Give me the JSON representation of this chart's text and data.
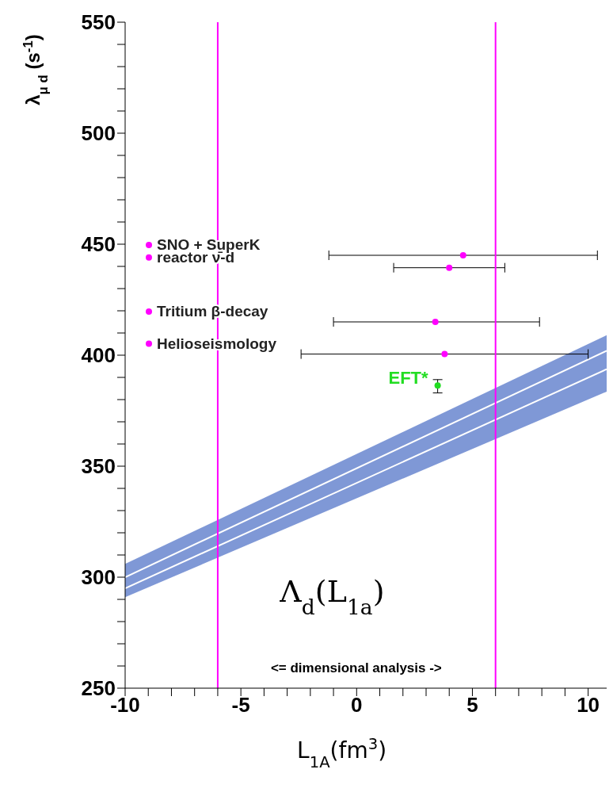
{
  "chart_data": {
    "type": "scatter",
    "xlabel": "L$_{1A}$(fm$^{3}$)",
    "ylabel": "λ$_{μ d}$ (s$^{-1}$)",
    "xlim": [
      -10,
      10.8
    ],
    "ylim": [
      250,
      550
    ],
    "xticks": [
      -10,
      {
        "value": -9,
        "label": null
      },
      {
        "value": -8,
        "label": null
      },
      {
        "value": -7,
        "label": null
      },
      {
        "value": -6,
        "label": null
      },
      -5,
      {
        "value": -4,
        "label": null
      },
      {
        "value": -3,
        "label": null
      },
      {
        "value": -2,
        "label": null
      },
      {
        "value": -1,
        "label": null
      },
      0,
      {
        "value": 1,
        "label": null
      },
      {
        "value": 2,
        "label": null
      },
      {
        "value": 3,
        "label": null
      },
      {
        "value": 4,
        "label": null
      },
      5,
      {
        "value": 6,
        "label": null
      },
      {
        "value": 7,
        "label": null
      },
      {
        "value": 8,
        "label": null
      },
      {
        "value": 9,
        "label": null
      },
      10
    ],
    "yticks": [
      250,
      {
        "value": 260,
        "label": null
      },
      {
        "value": 270,
        "label": null
      },
      {
        "value": 280,
        "label": null
      },
      {
        "value": 290,
        "label": null
      },
      300,
      {
        "value": 310,
        "label": null
      },
      {
        "value": 320,
        "label": null
      },
      {
        "value": 330,
        "label": null
      },
      {
        "value": 340,
        "label": null
      },
      350,
      {
        "value": 360,
        "label": null
      },
      {
        "value": 370,
        "label": null
      },
      {
        "value": 380,
        "label": null
      },
      {
        "value": 390,
        "label": null
      },
      400,
      {
        "value": 410,
        "label": null
      },
      {
        "value": 420,
        "label": null
      },
      {
        "value": 430,
        "label": null
      },
      {
        "value": 440,
        "label": null
      },
      450,
      {
        "value": 460,
        "label": null
      },
      {
        "value": 470,
        "label": null
      },
      {
        "value": 480,
        "label": null
      },
      {
        "value": 490,
        "label": null
      },
      500,
      {
        "value": 510,
        "label": null
      },
      {
        "value": 520,
        "label": null
      },
      {
        "value": 530,
        "label": null
      },
      {
        "value": 540,
        "label": null
      },
      550
    ],
    "marker": "circle",
    "legend": "left",
    "series": [
      {
        "type": "line",
        "color": "#ffffff",
        "colors": [
          "#7f98d6",
          "#7f98d6"
        ],
        "marker": "none",
        "x": [
          -10,
          10.8
        ],
        "values": [
          300,
          402
        ],
        "lower": [
          291,
          383.6
        ],
        "upper": [
          306,
          409
        ]
      },
      {
        "type": "line",
        "color": "#ffffff",
        "marker": "none",
        "x": [
          -10,
          10.8
        ],
        "values": [
          295,
          393.7
        ]
      },
      {
        "name": "SNO + SuperK",
        "color": "#ff00ff",
        "x": [
          4.6
        ],
        "values": [
          445
        ],
        "xerrors": [
          [
            -1.2,
            10.4
          ]
        ]
      },
      {
        "name": "reactor ν̄-d",
        "color": "#ff00ff",
        "x": [
          4
        ],
        "values": [
          439.4
        ],
        "xerrors": [
          [
            1.6,
            6.4
          ]
        ]
      },
      {
        "name": "Tritium β-decay",
        "color": "#ff00ff",
        "x": [
          3.4
        ],
        "values": [
          415
        ],
        "xerrors": [
          [
            -1,
            7.9
          ]
        ]
      },
      {
        "name": "Helioseismology",
        "color": "#ff00ff",
        "x": [
          3.8
        ],
        "values": [
          400.5
        ],
        "xerrors": [
          [
            -2.4,
            10
          ]
        ]
      },
      {
        "name": "EFT*",
        "color": "#22dd22",
        "x": [
          3.5
        ],
        "values": [
          386.3
        ],
        "errors": [
          [
            383,
            389
          ]
        ]
      }
    ],
    "ref_lines": [
      {
        "axis": "x",
        "value": -6,
        "color": "#ff00ff"
      },
      {
        "axis": "x",
        "value": 6,
        "color": "#ff00ff"
      }
    ],
    "annotations": [
      "Λ$_{d}$(L$_{1a}$)",
      "<= dimensional analysis ->"
    ]
  }
}
